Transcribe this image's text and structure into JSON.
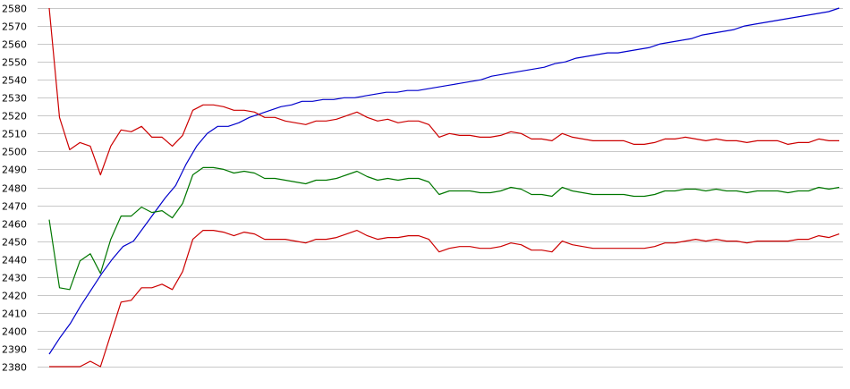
{
  "chart_data": {
    "type": "line",
    "title": "",
    "xlabel": "",
    "ylabel": "",
    "ylim": [
      2380,
      2580
    ],
    "y_ticks": [
      "2380",
      "2390",
      "2400",
      "2410",
      "2420",
      "2430",
      "2440",
      "2450",
      "2460",
      "2470",
      "2480",
      "2490",
      "2500",
      "2510",
      "2520",
      "2530",
      "2540",
      "2550",
      "2560",
      "2570",
      "2580"
    ],
    "grid": true,
    "series": [
      {
        "color": "#0000cc",
        "values": [
          2387,
          2396,
          2404,
          2414,
          2423,
          2432,
          2440,
          2447,
          2450,
          2458,
          2466,
          2474,
          2481,
          2493,
          2503,
          2510,
          2514,
          2514,
          2516,
          2519,
          2521,
          2523,
          2525,
          2526,
          2528,
          2528,
          2529,
          2529,
          2530,
          2530,
          2531,
          2532,
          2533,
          2533,
          2534,
          2534,
          2535,
          2536,
          2537,
          2538,
          2539,
          2540,
          2542,
          2543,
          2544,
          2545,
          2546,
          2547,
          2549,
          2550,
          2552,
          2553,
          2554,
          2555,
          2555,
          2556,
          2557,
          2558,
          2560,
          2561,
          2562,
          2563,
          2565,
          2566,
          2567,
          2568,
          2570,
          2571,
          2572,
          2573,
          2574,
          2575,
          2576,
          2577,
          2578,
          2580
        ]
      },
      {
        "color": "#cc0000",
        "values": [
          2580,
          2519,
          2501,
          2505,
          2503,
          2487,
          2503,
          2512,
          2511,
          2514,
          2508,
          2508,
          2503,
          2509,
          2523,
          2526,
          2526,
          2525,
          2523,
          2523,
          2522,
          2519,
          2519,
          2517,
          2516,
          2515,
          2517,
          2517,
          2518,
          2520,
          2522,
          2519,
          2517,
          2518,
          2516,
          2517,
          2517,
          2515,
          2508,
          2510,
          2509,
          2509,
          2508,
          2508,
          2509,
          2511,
          2510,
          2507,
          2507,
          2506,
          2510,
          2508,
          2507,
          2506,
          2506,
          2506,
          2506,
          2504,
          2504,
          2505,
          2507,
          2507,
          2508,
          2507,
          2506,
          2507,
          2506,
          2506,
          2505,
          2506,
          2506,
          2506,
          2504,
          2505,
          2505,
          2507,
          2506,
          2506
        ]
      },
      {
        "color": "#007700",
        "values": [
          2462,
          2424,
          2423,
          2439,
          2443,
          2432,
          2451,
          2464,
          2464,
          2469,
          2466,
          2467,
          2463,
          2471,
          2487,
          2491,
          2491,
          2490,
          2488,
          2489,
          2488,
          2485,
          2485,
          2484,
          2483,
          2482,
          2484,
          2484,
          2485,
          2487,
          2489,
          2486,
          2484,
          2485,
          2484,
          2485,
          2485,
          2483,
          2476,
          2478,
          2478,
          2478,
          2477,
          2477,
          2478,
          2480,
          2479,
          2476,
          2476,
          2475,
          2480,
          2478,
          2477,
          2476,
          2476,
          2476,
          2476,
          2475,
          2475,
          2476,
          2478,
          2478,
          2479,
          2479,
          2478,
          2479,
          2478,
          2478,
          2477,
          2478,
          2478,
          2478,
          2477,
          2478,
          2478,
          2480,
          2479,
          2480
        ]
      },
      {
        "color": "#cc0000",
        "values": [
          2380,
          2380,
          2380,
          2380,
          2383,
          2380,
          2398,
          2416,
          2417,
          2424,
          2424,
          2426,
          2423,
          2433,
          2451,
          2456,
          2456,
          2455,
          2453,
          2455,
          2454,
          2451,
          2451,
          2451,
          2450,
          2449,
          2451,
          2451,
          2452,
          2454,
          2456,
          2453,
          2451,
          2452,
          2452,
          2453,
          2453,
          2451,
          2444,
          2446,
          2447,
          2447,
          2446,
          2446,
          2447,
          2449,
          2448,
          2445,
          2445,
          2444,
          2450,
          2448,
          2447,
          2446,
          2446,
          2446,
          2446,
          2446,
          2446,
          2447,
          2449,
          2449,
          2450,
          2451,
          2450,
          2451,
          2450,
          2450,
          2449,
          2450,
          2450,
          2450,
          2450,
          2451,
          2451,
          2453,
          2452,
          2454
        ]
      }
    ]
  }
}
